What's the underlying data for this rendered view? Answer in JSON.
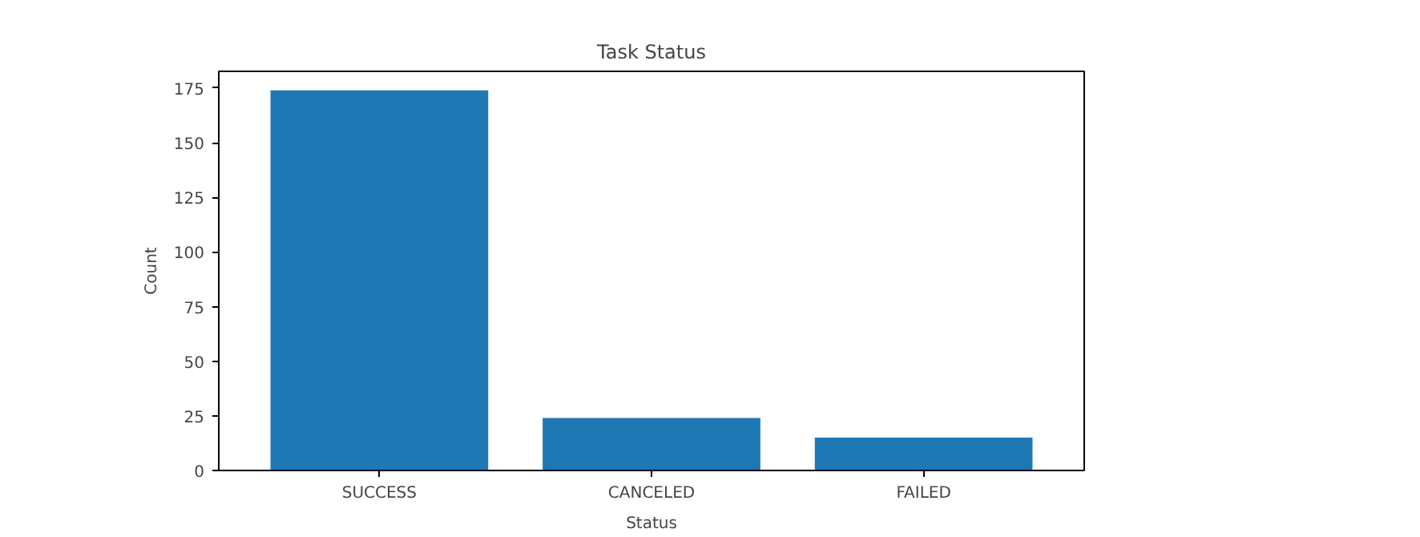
{
  "chart_data": {
    "type": "bar",
    "title": "Task Status",
    "xlabel": "Status",
    "ylabel": "Count",
    "categories": [
      "SUCCESS",
      "CANCELED",
      "FAILED"
    ],
    "values": [
      174,
      24,
      15
    ],
    "color": "#1f77b4",
    "ylim": [
      0,
      182.7
    ],
    "yticks": [
      0,
      25,
      50,
      75,
      100,
      125,
      150,
      175
    ],
    "grid": false
  }
}
